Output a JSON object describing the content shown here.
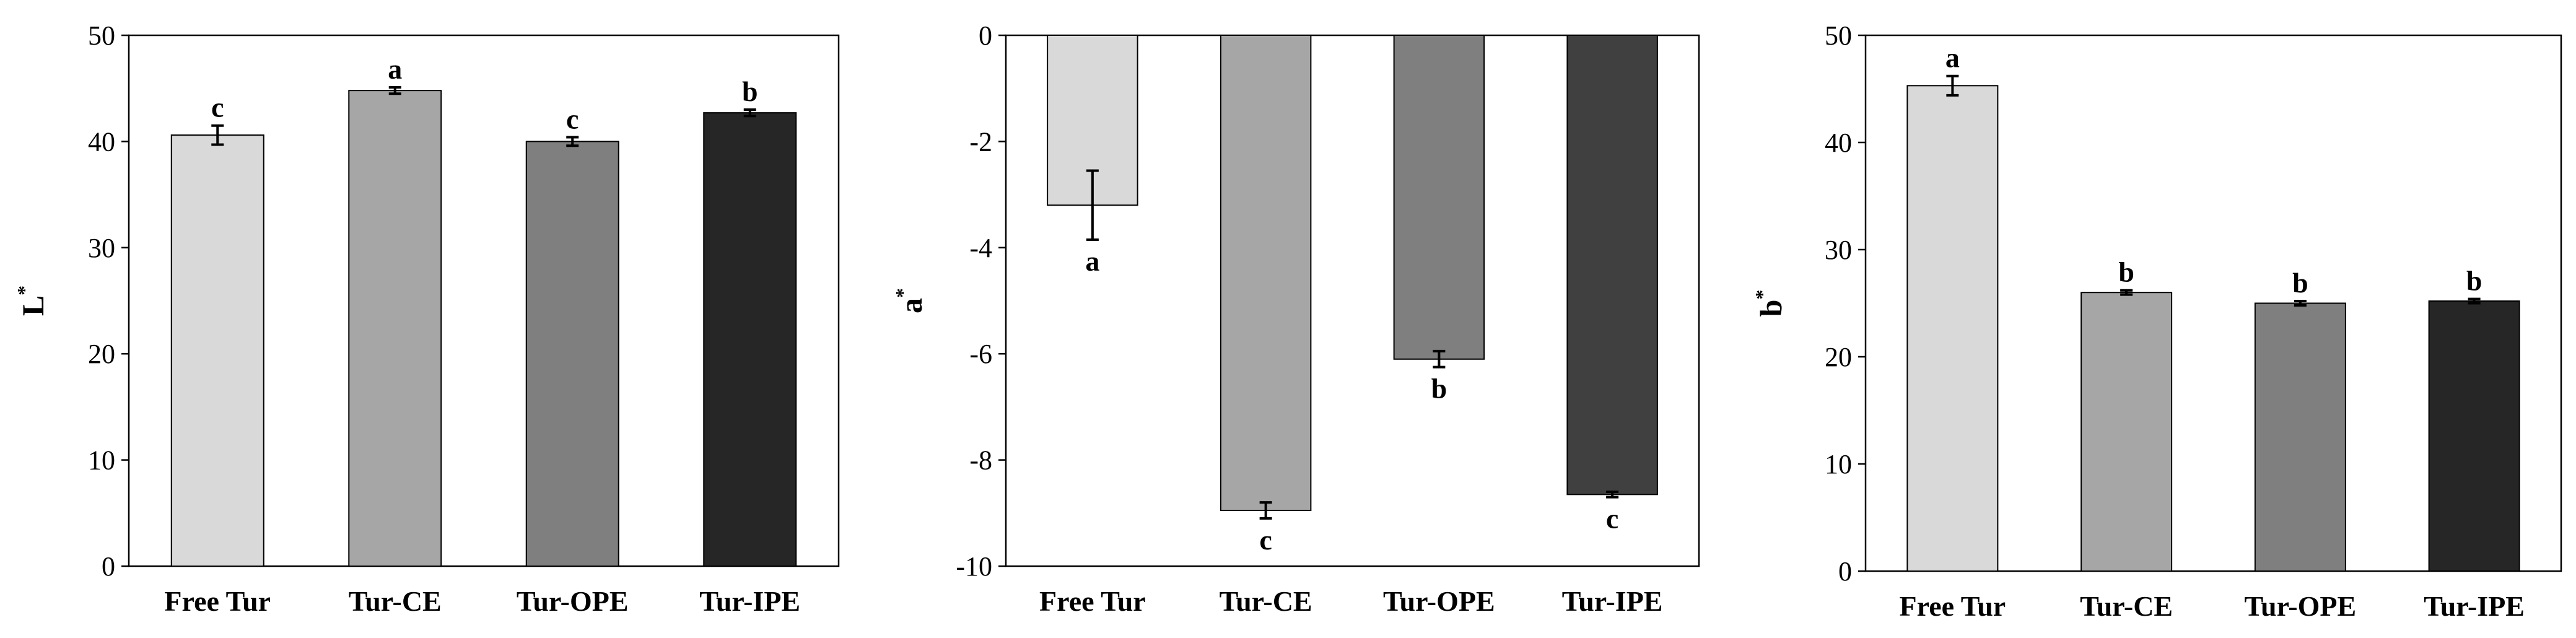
{
  "chart_data": [
    {
      "type": "bar",
      "ylabel": "L",
      "ylabel_sup": "*",
      "categories": [
        "Free Tur",
        "Tur-CE",
        "Tur-OPE",
        "Tur-IPE"
      ],
      "values": [
        40.6,
        44.8,
        40.0,
        42.7
      ],
      "errors": [
        0.9,
        0.3,
        0.4,
        0.3
      ],
      "letters": [
        "c",
        "a",
        "c",
        "b"
      ],
      "ylim": [
        0,
        50
      ],
      "ticks": [
        0,
        10,
        20,
        30,
        40,
        50
      ],
      "colors": [
        "#d9d9d9",
        "#a6a6a6",
        "#7f7f7f",
        "#262626"
      ]
    },
    {
      "type": "bar",
      "ylabel": "a",
      "ylabel_sup": "*",
      "categories": [
        "Free Tur",
        "Tur-CE",
        "Tur-OPE",
        "Tur-IPE"
      ],
      "values": [
        -3.2,
        -8.95,
        -6.1,
        -8.65
      ],
      "errors": [
        0.65,
        0.15,
        0.15,
        0.05
      ],
      "letters": [
        "a",
        "c",
        "b",
        "c"
      ],
      "ylim": [
        -10,
        0
      ],
      "ticks": [
        0,
        -2,
        -4,
        -6,
        -8,
        -10
      ],
      "colors": [
        "#d9d9d9",
        "#a6a6a6",
        "#7f7f7f",
        "#404040"
      ]
    },
    {
      "type": "bar",
      "ylabel": "b",
      "ylabel_sup": "*",
      "categories": [
        "Free Tur",
        "Tur-CE",
        "Tur-OPE",
        "Tur-IPE"
      ],
      "values": [
        45.3,
        26.0,
        25.0,
        25.2
      ],
      "errors": [
        0.9,
        0.2,
        0.2,
        0.2
      ],
      "letters": [
        "a",
        "b",
        "b",
        "b"
      ],
      "ylim": [
        0,
        50
      ],
      "ticks": [
        0,
        10,
        20,
        30,
        40,
        50
      ],
      "colors": [
        "#d9d9d9",
        "#a6a6a6",
        "#7f7f7f",
        "#262626"
      ]
    }
  ]
}
